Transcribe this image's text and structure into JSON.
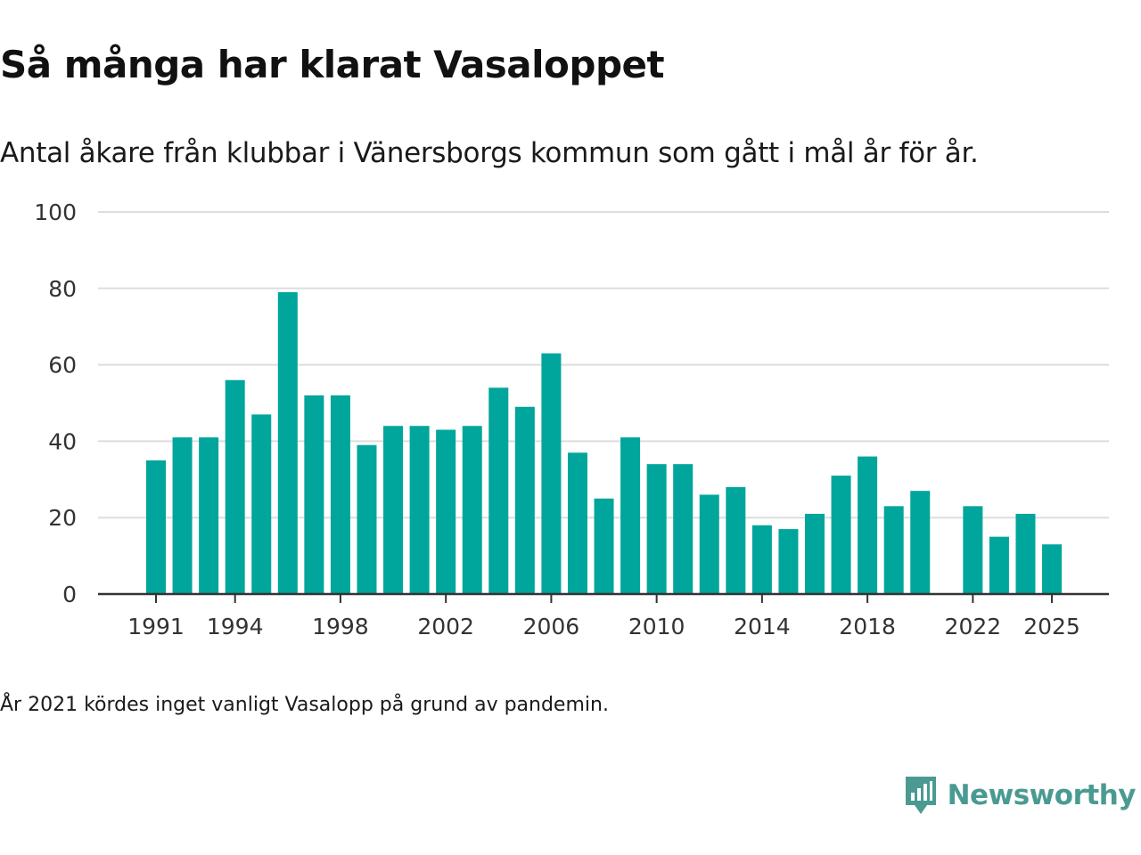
{
  "chart_data": {
    "type": "bar",
    "title": "Så många har klarat Vasaloppet",
    "subtitle": "Antal åkare från klubbar i Vänersborgs kommun som gått i mål år för år.",
    "xlabel": "",
    "ylabel": "",
    "ylim": [
      0,
      100
    ],
    "yticks": [
      "0",
      "20",
      "40",
      "60",
      "80",
      "100"
    ],
    "xticks": [
      "1991",
      "1994",
      "1998",
      "2002",
      "2006",
      "2010",
      "2014",
      "2018",
      "2022",
      "2025"
    ],
    "grid": true,
    "categories": [
      1991,
      1992,
      1993,
      1994,
      1995,
      1996,
      1997,
      1998,
      1999,
      2000,
      2001,
      2002,
      2003,
      2004,
      2005,
      2006,
      2007,
      2008,
      2009,
      2010,
      2011,
      2012,
      2013,
      2014,
      2015,
      2016,
      2017,
      2018,
      2019,
      2020,
      2021,
      2022,
      2023,
      2024,
      2025
    ],
    "values": [
      35,
      41,
      41,
      56,
      47,
      79,
      52,
      52,
      39,
      44,
      44,
      43,
      44,
      54,
      49,
      63,
      37,
      25,
      41,
      34,
      34,
      26,
      28,
      18,
      17,
      21,
      31,
      36,
      23,
      27,
      null,
      23,
      15,
      21,
      13
    ],
    "bar_color": "#00a59b",
    "note": "År 2021 kördes inget vanligt Vasalopp på grund av pandemin."
  },
  "brand": {
    "name": "Newsworthy",
    "icon": "newsworthy-logo-icon",
    "color": "#4a9a92"
  }
}
